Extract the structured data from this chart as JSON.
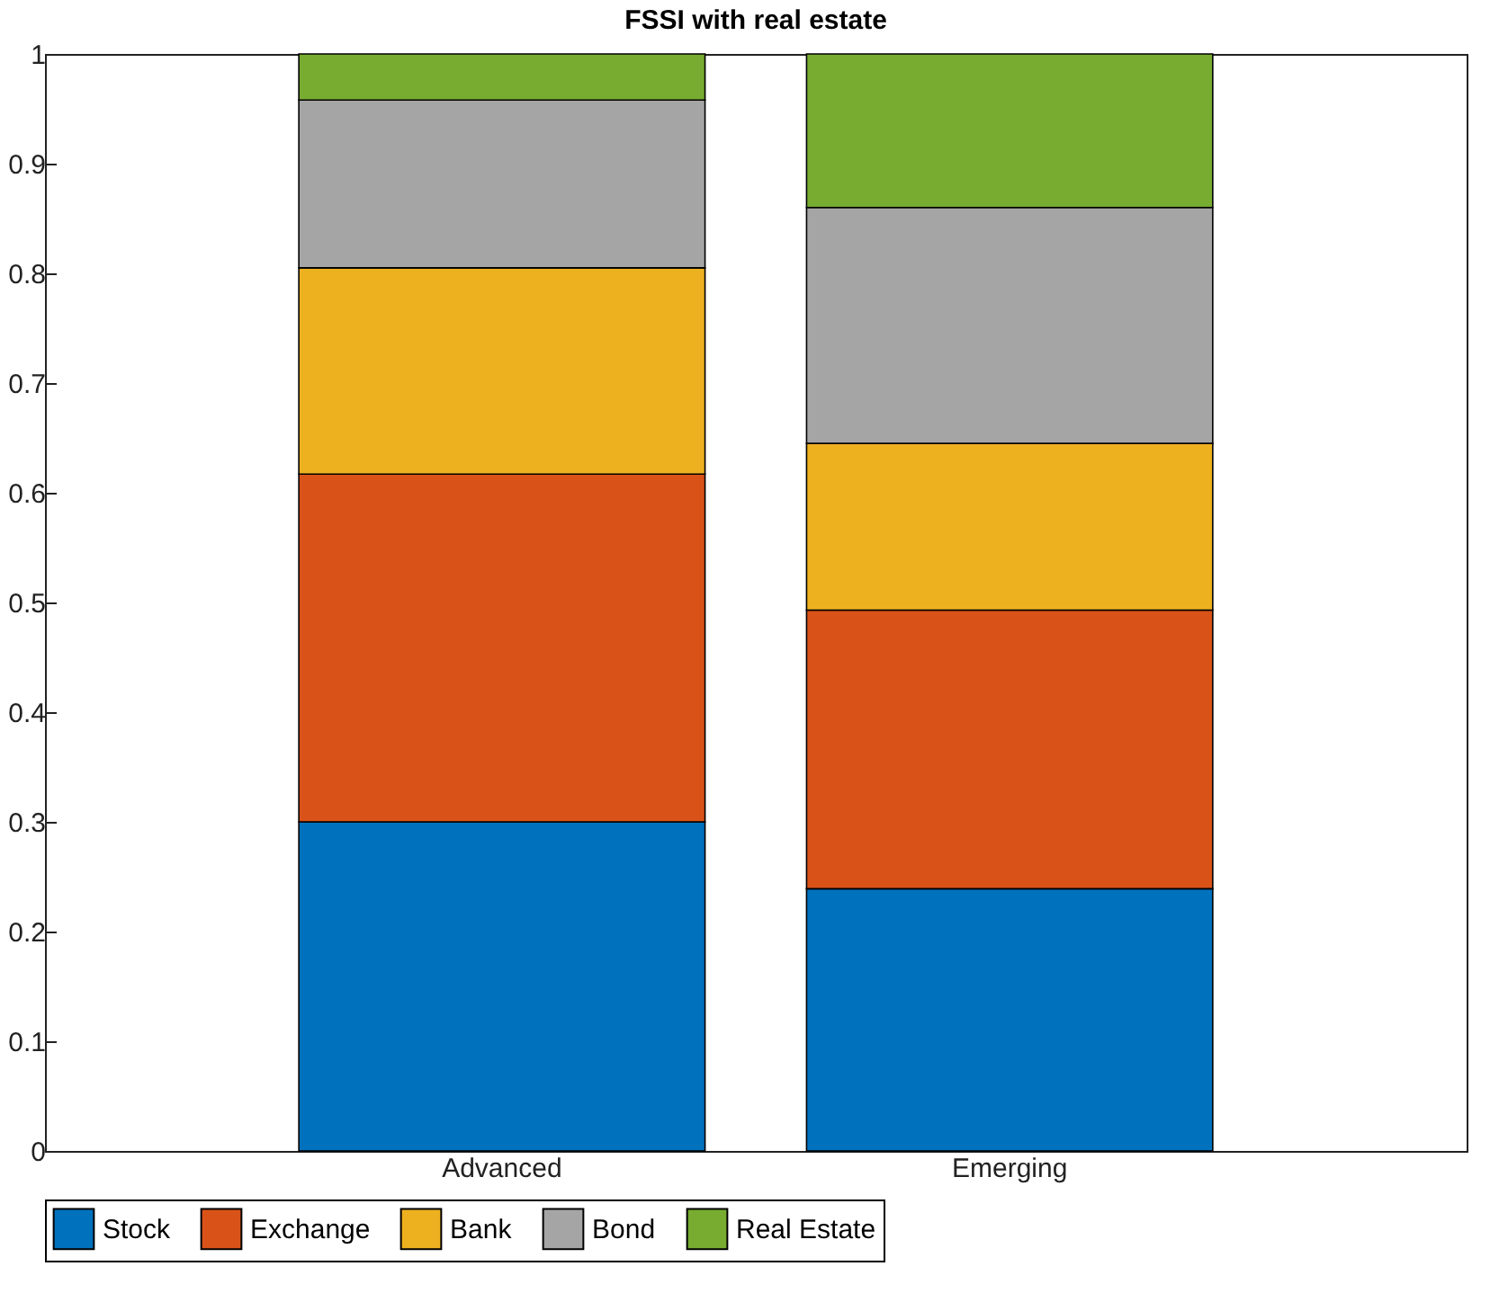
{
  "chart_data": {
    "type": "bar",
    "title": "FSSI with real estate",
    "stacked": true,
    "categories": [
      "Advanced",
      "Emerging"
    ],
    "series": [
      {
        "name": "Stock",
        "color": "#0072bd",
        "values": [
          0.3,
          0.239
        ]
      },
      {
        "name": "Exchange",
        "color": "#d95319",
        "values": [
          0.317,
          0.254
        ]
      },
      {
        "name": "Bank",
        "color": "#edb120",
        "values": [
          0.188,
          0.152
        ]
      },
      {
        "name": "Bond",
        "color": "#a5a5a5",
        "values": [
          0.153,
          0.215
        ]
      },
      {
        "name": "Real Estate",
        "color": "#77ac30",
        "values": [
          0.042,
          0.14
        ]
      }
    ],
    "ylim": [
      0,
      1
    ],
    "yticks": [
      0,
      0.1,
      0.2,
      0.3,
      0.4,
      0.5,
      0.6,
      0.7,
      0.8,
      0.9,
      1
    ],
    "grid": false,
    "legend": "bottom"
  }
}
